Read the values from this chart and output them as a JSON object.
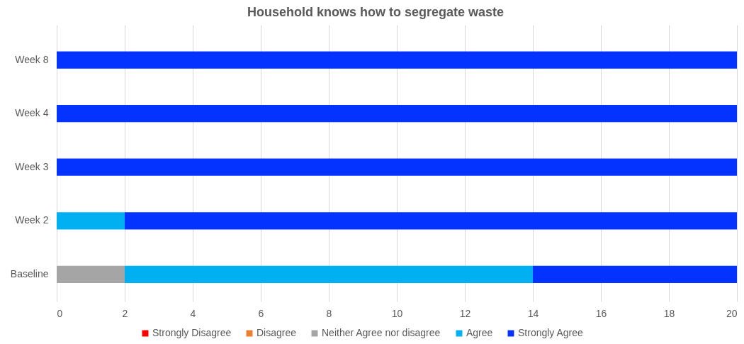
{
  "chart_data": {
    "type": "bar",
    "title": "Household knows how to segregate waste",
    "categories": [
      "Week 8",
      "Week 4",
      "Week 3",
      "Week 2",
      "Baseline"
    ],
    "series": [
      {
        "name": "Strongly Disagree",
        "color": "#ff0000",
        "values": [
          0,
          0,
          0,
          0,
          0
        ]
      },
      {
        "name": "Disagree",
        "color": "#ed7d31",
        "values": [
          0,
          0,
          0,
          0,
          0
        ]
      },
      {
        "name": "Neither Agree nor disagree",
        "color": "#a5a5a5",
        "values": [
          0,
          0,
          0,
          0,
          2
        ]
      },
      {
        "name": "Agree",
        "color": "#00b0f0",
        "values": [
          0,
          0,
          0,
          2,
          12
        ]
      },
      {
        "name": "Strongly Agree",
        "color": "#0433ff",
        "values": [
          20,
          20,
          20,
          18,
          6
        ]
      }
    ],
    "stacked": true,
    "orientation": "horizontal",
    "xlim": [
      0,
      20
    ],
    "xticks": [
      0,
      2,
      4,
      6,
      8,
      10,
      12,
      14,
      16,
      18,
      20
    ],
    "grid": "x",
    "legend": "bottom"
  }
}
